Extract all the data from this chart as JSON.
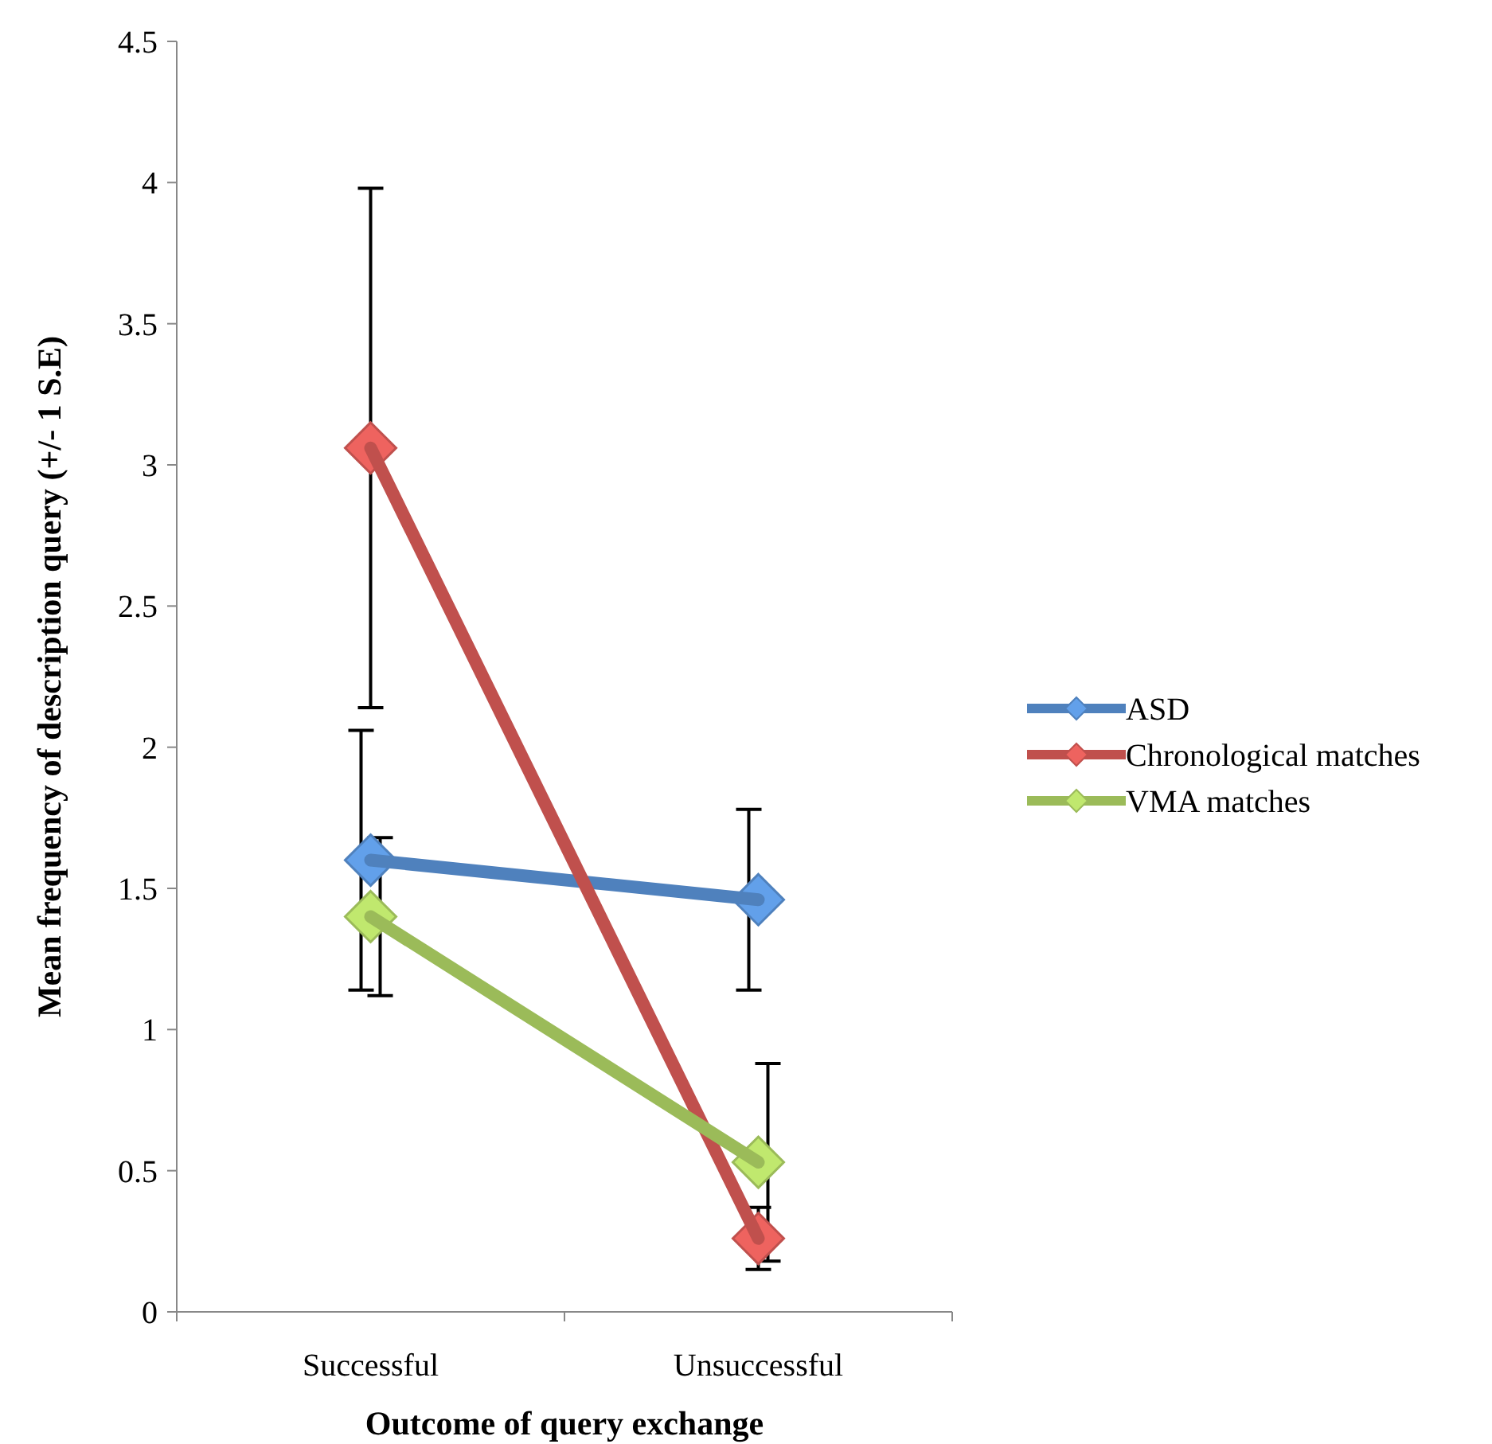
{
  "chart_data": {
    "type": "line",
    "xlabel": "Outcome of query exchange",
    "ylabel": "Mean frequency of description query  (+/- 1 S.E)",
    "categories": [
      "Successful",
      "Unsuccessful"
    ],
    "series": [
      {
        "name": "ASD",
        "color": "#4f81bd",
        "values": [
          1.6,
          1.46
        ],
        "errors": [
          0.46,
          0.32
        ]
      },
      {
        "name": "Chronological matches",
        "color": "#c0504d",
        "values": [
          3.06,
          0.26
        ],
        "errors": [
          0.92,
          0.11
        ]
      },
      {
        "name": "VMA matches",
        "color": "#9bbb59",
        "values": [
          1.4,
          0.53
        ],
        "errors": [
          0.28,
          0.35
        ]
      }
    ],
    "ylim": [
      0,
      4.5
    ],
    "yticks": [
      0,
      0.5,
      1,
      1.5,
      2,
      2.5,
      3,
      3.5,
      4,
      4.5
    ],
    "marker": "diamond",
    "legend": "right",
    "grid": false
  }
}
